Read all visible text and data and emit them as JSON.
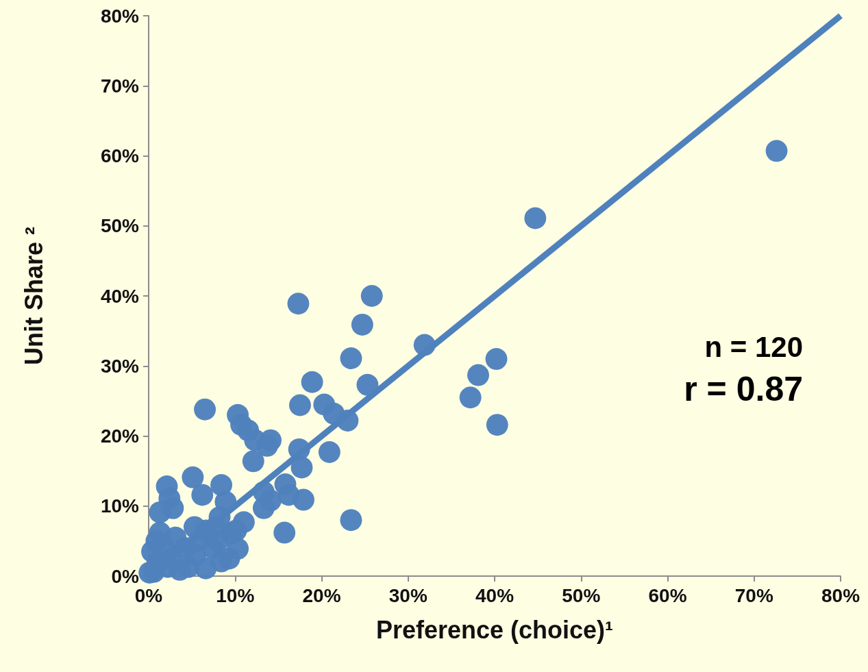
{
  "chart_data": {
    "type": "scatter",
    "xlabel": "Preference (choice)¹",
    "ylabel": "Unit Share ²",
    "xlim": [
      0,
      80
    ],
    "ylim": [
      0,
      80
    ],
    "xticks": [
      {
        "value": 0,
        "label": "0%"
      },
      {
        "value": 10,
        "label": "10%"
      },
      {
        "value": 20,
        "label": "20%"
      },
      {
        "value": 30,
        "label": "30%"
      },
      {
        "value": 40,
        "label": "40%"
      },
      {
        "value": 50,
        "label": "50%"
      },
      {
        "value": 60,
        "label": "60%"
      },
      {
        "value": 70,
        "label": "70%"
      },
      {
        "value": 80,
        "label": "80%"
      }
    ],
    "yticks": [
      {
        "value": 0,
        "label": "0%"
      },
      {
        "value": 10,
        "label": "10%"
      },
      {
        "value": 20,
        "label": "20%"
      },
      {
        "value": 30,
        "label": "30%"
      },
      {
        "value": 40,
        "label": "40%"
      },
      {
        "value": 50,
        "label": "50%"
      },
      {
        "value": 60,
        "label": "60%"
      },
      {
        "value": 70,
        "label": "70%"
      },
      {
        "value": 80,
        "label": "80%"
      }
    ],
    "grid": false,
    "annotations": [
      "n = 120",
      "r = 0.87"
    ],
    "series": [
      {
        "marker": "circle",
        "color": "#4f81bd",
        "x": [
          72.6,
          44.7,
          25.8,
          17.3,
          24.7,
          31.9,
          40.2,
          23.4,
          38.1,
          18.9,
          25.3,
          37.2,
          17.5,
          20.3,
          21.4,
          23.0,
          40.3,
          6.5,
          10.3,
          10.7,
          11.5,
          12.3,
          14.1,
          13.7,
          17.4,
          20.9,
          12.1,
          17.7,
          2.1,
          5.1,
          8.4,
          6.2,
          2.4,
          2.8,
          1.3,
          8.9,
          15.8,
          16.2,
          13.3,
          14.1,
          13.3,
          17.9,
          23.4,
          11.0,
          15.7,
          8.2,
          10.3,
          9.5,
          7.7,
          6.6,
          5.3,
          3.1,
          1.3,
          0.9,
          0.4,
          1.8,
          4.2,
          5.8,
          7.4,
          8.4,
          9.3,
          6.6,
          4.6,
          3.6,
          2.2,
          0.6,
          0.1,
          2.6,
          5.4,
          1.0,
          8.0,
          10.1
        ],
        "values": [
          60.7,
          51.1,
          40.0,
          38.9,
          35.9,
          33.0,
          31.0,
          31.1,
          28.7,
          27.7,
          27.3,
          25.5,
          24.4,
          24.5,
          23.2,
          22.2,
          21.6,
          23.8,
          23.0,
          21.6,
          20.8,
          19.4,
          19.4,
          18.6,
          18.1,
          17.7,
          16.4,
          15.5,
          12.8,
          14.1,
          13.0,
          11.6,
          11.1,
          9.7,
          9.1,
          10.6,
          13.1,
          11.6,
          12.0,
          10.8,
          9.7,
          10.9,
          8.0,
          7.7,
          6.2,
          8.4,
          3.9,
          6.1,
          6.9,
          6.5,
          7.0,
          5.5,
          6.2,
          5.0,
          3.5,
          4.0,
          4.0,
          5.0,
          4.0,
          2.1,
          2.5,
          1.1,
          1.3,
          0.9,
          1.3,
          0.6,
          0.5,
          2.5,
          3.0,
          1.9,
          5.0,
          6.5
        ]
      },
      {
        "type": "line",
        "color": "#4f81bd",
        "x": [
          0,
          80
        ],
        "values": [
          0,
          80
        ],
        "marker": "none",
        "line_style": "solid"
      }
    ]
  }
}
